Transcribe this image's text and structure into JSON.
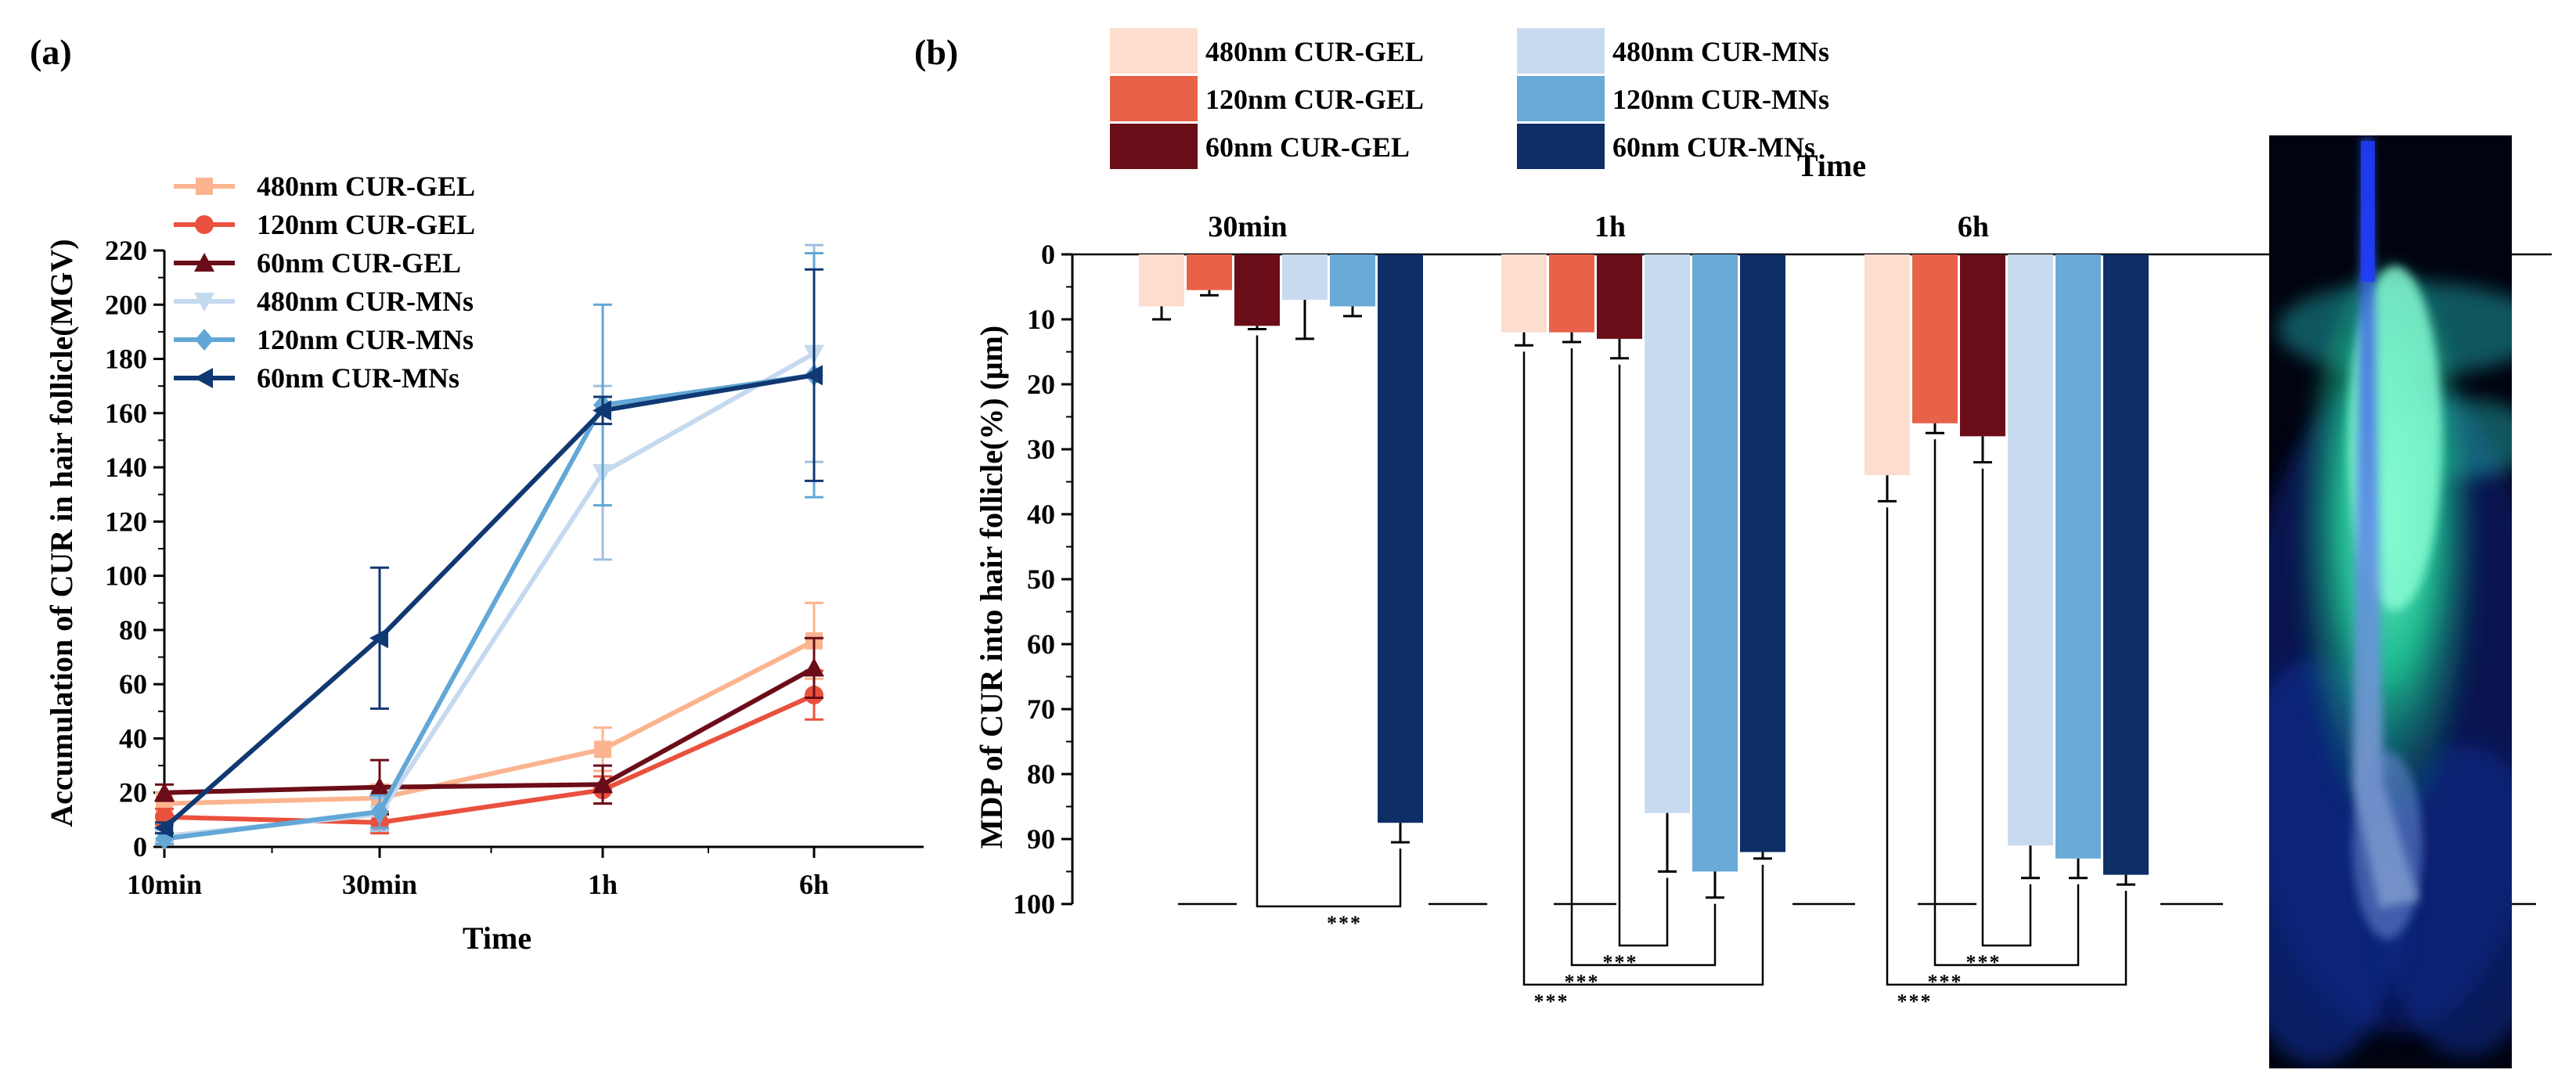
{
  "figure": {
    "panel_a_label": "(a)",
    "panel_b_label": "(b)"
  },
  "colors": {
    "c480gel": "#fbb48f",
    "c120gel": "#e9513e",
    "c60gel": "#6b0d18",
    "c480mn": "#c5d9ef",
    "c120mn": "#62a7d6",
    "c60mn": "#103872",
    "b480gel": "#fdddcd",
    "b120gel": "#e8624a",
    "b60gel": "#6b0d18",
    "b480mn": "#c8daef",
    "b120mn": "#6aaad7",
    "b60mn": "#0d2f66"
  },
  "chart_data": [
    {
      "type": "line",
      "panel": "(a)",
      "title": "",
      "xlabel": "Time",
      "ylabel": "Accumulation of CUR in hair follicle(MGV)",
      "categories": [
        "10min",
        "30min",
        "1h",
        "6h"
      ],
      "ylim": [
        0,
        220
      ],
      "yticks": [
        0,
        20,
        40,
        60,
        80,
        100,
        120,
        140,
        160,
        180,
        200,
        220
      ],
      "legend_position": "top-left",
      "series": [
        {
          "name": "480nm CUR-GEL",
          "color_key": "c480gel",
          "marker": "square",
          "values": [
            16,
            18,
            36,
            76
          ],
          "errors": [
            4,
            5,
            8,
            14
          ]
        },
        {
          "name": "120nm CUR-GEL",
          "color_key": "c120gel",
          "marker": "circle",
          "values": [
            11,
            9,
            21,
            56
          ],
          "errors": [
            3,
            4,
            5,
            9
          ]
        },
        {
          "name": "60nm CUR-GEL",
          "color_key": "c60gel",
          "marker": "triangle-up",
          "values": [
            20,
            22,
            23,
            66
          ],
          "errors": [
            3,
            10,
            7,
            11
          ]
        },
        {
          "name": "480nm CUR-MNs",
          "color_key": "c480mn",
          "marker": "triangle-down",
          "values": [
            4,
            12,
            138,
            182
          ],
          "errors": [
            2,
            6,
            32,
            40
          ]
        },
        {
          "name": "120nm CUR-MNs",
          "color_key": "c120mn",
          "marker": "diamond",
          "values": [
            3,
            13,
            163,
            174
          ],
          "errors": [
            2,
            6,
            37,
            45
          ]
        },
        {
          "name": "60nm CUR-MNs",
          "color_key": "c60mn",
          "marker": "triangle-left",
          "values": [
            7,
            77,
            161,
            174
          ],
          "errors": [
            2,
            26,
            5,
            39
          ]
        }
      ]
    },
    {
      "type": "bar",
      "panel": "(b)",
      "title": "Time",
      "xlabel": "Time",
      "ylabel": "MDP of CUR into hair follicle(%) (μm)",
      "categories": [
        "30min",
        "1h",
        "6h"
      ],
      "ylim": [
        0,
        100
      ],
      "y_inverted": true,
      "yticks": [
        0,
        10,
        20,
        30,
        40,
        50,
        60,
        70,
        80,
        90,
        100
      ],
      "legend_position": "top",
      "series": [
        {
          "name": "480nm CUR-GEL",
          "color_key": "b480gel",
          "values": [
            8,
            12,
            34
          ],
          "errors": [
            2,
            2,
            4
          ]
        },
        {
          "name": "120nm CUR-GEL",
          "color_key": "b120gel",
          "values": [
            5.5,
            12,
            26
          ],
          "errors": [
            0.8,
            1.5,
            1.5
          ]
        },
        {
          "name": "60nm CUR-GEL",
          "color_key": "b60gel",
          "values": [
            11,
            13,
            28
          ],
          "errors": [
            0.5,
            3,
            4
          ]
        },
        {
          "name": "480nm CUR-MNs",
          "color_key": "b480mn",
          "values": [
            7,
            86,
            91
          ],
          "errors": [
            6,
            9,
            5
          ]
        },
        {
          "name": "120nm CUR-MNs",
          "color_key": "b120mn",
          "values": [
            8,
            95,
            93
          ],
          "errors": [
            1.5,
            4,
            3
          ]
        },
        {
          "name": "60nm CUR-MNs",
          "color_key": "b60mn",
          "values": [
            87.5,
            92,
            95.5
          ],
          "errors": [
            3,
            1,
            1.5
          ]
        }
      ],
      "significance": [
        {
          "group": "30min",
          "from": "60nm CUR-GEL",
          "to": "60nm CUR-MNs",
          "label": "***"
        },
        {
          "group": "1h",
          "from": "60nm CUR-GEL",
          "to": "480nm CUR-MNs",
          "label": "***"
        },
        {
          "group": "1h",
          "from": "120nm CUR-GEL",
          "to": "120nm CUR-MNs",
          "label": "***"
        },
        {
          "group": "1h",
          "from": "480nm CUR-GEL",
          "to": "60nm CUR-MNs",
          "label": "***"
        },
        {
          "group": "6h",
          "from": "60nm CUR-GEL",
          "to": "480nm CUR-MNs",
          "label": "***"
        },
        {
          "group": "6h",
          "from": "120nm CUR-GEL",
          "to": "120nm CUR-MNs",
          "label": "***"
        },
        {
          "group": "6h",
          "from": "480nm CUR-GEL",
          "to": "60nm CUR-MNs",
          "label": "***"
        }
      ]
    }
  ],
  "image_panel": {
    "name": "hair follicle fluorescence micrograph"
  }
}
